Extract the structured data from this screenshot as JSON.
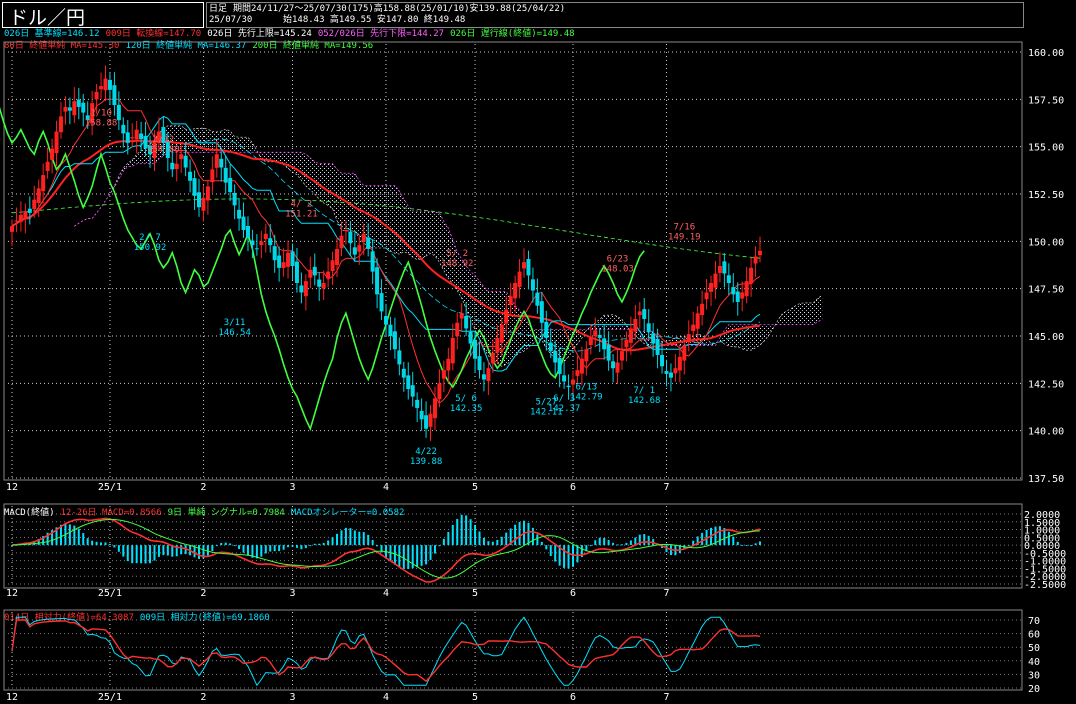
{
  "window": {
    "title": "ドル／円",
    "period_type": "日足",
    "period_info": "期間24/11/27～25/07/30(175)高158.88(25/01/10)安139.88(25/04/22)",
    "last_date": "25/07/30",
    "ohlc": "始148.43 高149.55 安147.80 終149.48"
  },
  "legends": {
    "main_line1": [
      {
        "text": "026日 基準線=146.12",
        "color": "#00e0ff"
      },
      {
        "text": "009日 転換線=147.70",
        "color": "#ff3030"
      },
      {
        "text": "026日 先行上限=145.24",
        "color": "#ffffff"
      },
      {
        "text": "052/026日 先行下限=144.27",
        "color": "#ff60ff"
      },
      {
        "text": "026日 遅行線(終値)=149.48",
        "color": "#40ff40"
      }
    ],
    "main_line2": [
      {
        "text": "80日 終値単純 MA=145.30",
        "color": "#ff3030"
      },
      {
        "text": "120日 終値単純 MA=146.37",
        "color": "#00e0ff"
      },
      {
        "text": "200日 終値単純 MA=149.56",
        "color": "#40ff40"
      }
    ],
    "macd": [
      {
        "text": "MACD(終値)",
        "color": "#ffffff"
      },
      {
        "text": "12-26日 MACD=0.8566",
        "color": "#ff3030"
      },
      {
        "text": "9日 単純 シグナル=0.7984",
        "color": "#40ff40"
      },
      {
        "text": "MACDオシレーター=0.0582",
        "color": "#00e0ff"
      }
    ],
    "rsi": [
      {
        "text": "014日 相対力(終値)=64.3087",
        "color": "#ff3030"
      },
      {
        "text": "009日 相対力(終値)=69.1860",
        "color": "#00e0ff"
      }
    ]
  },
  "colors": {
    "up": "#ff2020",
    "down": "#00d8e8",
    "kijun": "#00e0ff",
    "tenkan": "#ff3030",
    "span_a": "#ffffff",
    "span_b": "#ff40ff",
    "chikou": "#40ff40",
    "ma80": "#ff2020",
    "ma120": "#00e0ff",
    "ma200": "#40ff40",
    "grid": "#cccccc"
  },
  "chart_data": [
    {
      "type": "candlestick",
      "title": "ドル／円 日足",
      "y_ticks": [
        "160.00",
        "157.50",
        "155.00",
        "152.50",
        "150.00",
        "147.50",
        "145.00",
        "142.50",
        "140.00",
        "137.50"
      ],
      "ylim": [
        137.5,
        160.0
      ],
      "x_ticks": [
        "12",
        "25/1",
        "2",
        "3",
        "4",
        "5",
        "6",
        "7"
      ],
      "annotations": [
        {
          "date": "1/10",
          "value": "158.88",
          "color": "#ff6060"
        },
        {
          "date": "2/12",
          "value": "154.80",
          "color": "#ff6060"
        },
        {
          "date": "2/ 7",
          "value": "150.92",
          "color": "#00e0ff"
        },
        {
          "date": "3/11",
          "value": "146.54",
          "color": "#00e0ff"
        },
        {
          "date": "4/ 2",
          "value": "151.21",
          "color": "#ff6060"
        },
        {
          "date": "4/22",
          "value": "139.88",
          "color": "#00e0ff"
        },
        {
          "date": "5/ 2",
          "value": "148.92",
          "color": "#ff6060"
        },
        {
          "date": "5/ 6",
          "value": "142.35",
          "color": "#00e0ff"
        },
        {
          "date": "5/27",
          "value": "142.11",
          "color": "#00e0ff"
        },
        {
          "date": "6/ 3",
          "value": "142.37",
          "color": "#00e0ff"
        },
        {
          "date": "6/13",
          "value": "142.79",
          "color": "#00e0ff"
        },
        {
          "date": "6/23",
          "value": "148.03",
          "color": "#ff6060"
        },
        {
          "date": "7/ 1",
          "value": "142.68",
          "color": "#00e0ff"
        },
        {
          "date": "7/16",
          "value": "149.19",
          "color": "#ff6060"
        }
      ],
      "close": [
        150.8,
        151.1,
        151.4,
        151.6,
        151.5,
        152.2,
        152.8,
        153.5,
        154.2,
        154.9,
        155.8,
        156.6,
        157.1,
        156.9,
        157.4,
        157.1,
        156.8,
        156.4,
        157.3,
        157.9,
        158.2,
        158.6,
        158.0,
        157.2,
        156.4,
        155.7,
        155.2,
        155.5,
        155.9,
        155.4,
        154.9,
        154.6,
        155.3,
        155.8,
        155.2,
        154.4,
        153.8,
        154.1,
        154.6,
        153.9,
        153.2,
        152.4,
        151.8,
        152.3,
        152.9,
        153.8,
        154.6,
        153.9,
        153.1,
        152.6,
        151.9,
        151.2,
        150.6,
        150.2,
        149.8,
        149.6,
        150.0,
        150.4,
        149.8,
        149.0,
        148.6,
        148.9,
        149.4,
        148.7,
        147.8,
        147.3,
        147.9,
        148.5,
        148.2,
        147.6,
        147.8,
        148.4,
        149.0,
        149.6,
        150.3,
        150.6,
        149.9,
        149.3,
        149.8,
        150.4,
        149.6,
        148.4,
        147.2,
        146.3,
        145.6,
        145.0,
        144.3,
        143.5,
        142.8,
        142.2,
        141.8,
        141.2,
        140.6,
        140.1,
        140.9,
        141.7,
        142.5,
        143.2,
        143.8,
        144.9,
        145.7,
        146.2,
        145.4,
        144.6,
        143.8,
        143.2,
        142.7,
        143.3,
        144.1,
        144.9,
        145.6,
        146.4,
        147.1,
        147.8,
        148.4,
        148.9,
        148.2,
        147.4,
        146.6,
        145.7,
        144.9,
        144.2,
        143.6,
        143.0,
        142.6,
        142.3,
        142.7,
        143.2,
        143.8,
        144.3,
        144.9,
        145.3,
        144.9,
        144.3,
        143.7,
        143.3,
        143.6,
        144.2,
        144.8,
        145.4,
        145.9,
        146.3,
        145.9,
        145.2,
        144.6,
        144.0,
        143.4,
        143.0,
        142.8,
        143.3,
        143.9,
        144.5,
        145.1,
        145.6,
        146.2,
        146.7,
        147.3,
        147.8,
        148.3,
        148.7,
        148.3,
        147.8,
        147.2,
        146.8,
        147.3,
        147.9,
        148.6,
        149.2,
        149.5
      ]
    },
    {
      "type": "line",
      "title": "MACD(終値)",
      "y_ticks": [
        "2.0000",
        "1.5000",
        "1.0000",
        "0.5000",
        "0.0000",
        "-0.5000",
        "-1.0000",
        "-1.5000",
        "-2.0000",
        "-2.5000"
      ],
      "ylim": [
        -2.5,
        2.0
      ],
      "series": [
        {
          "name": "MACD"
        },
        {
          "name": "シグナル"
        },
        {
          "name": "MACDオシレーター"
        }
      ]
    },
    {
      "type": "line",
      "title": "相対力(終値)",
      "y_ticks": [
        "70",
        "60",
        "50",
        "40",
        "30",
        "20"
      ],
      "ylim": [
        20,
        70
      ],
      "series": [
        {
          "name": "014日 相対力"
        },
        {
          "name": "009日 相対力"
        }
      ]
    }
  ]
}
